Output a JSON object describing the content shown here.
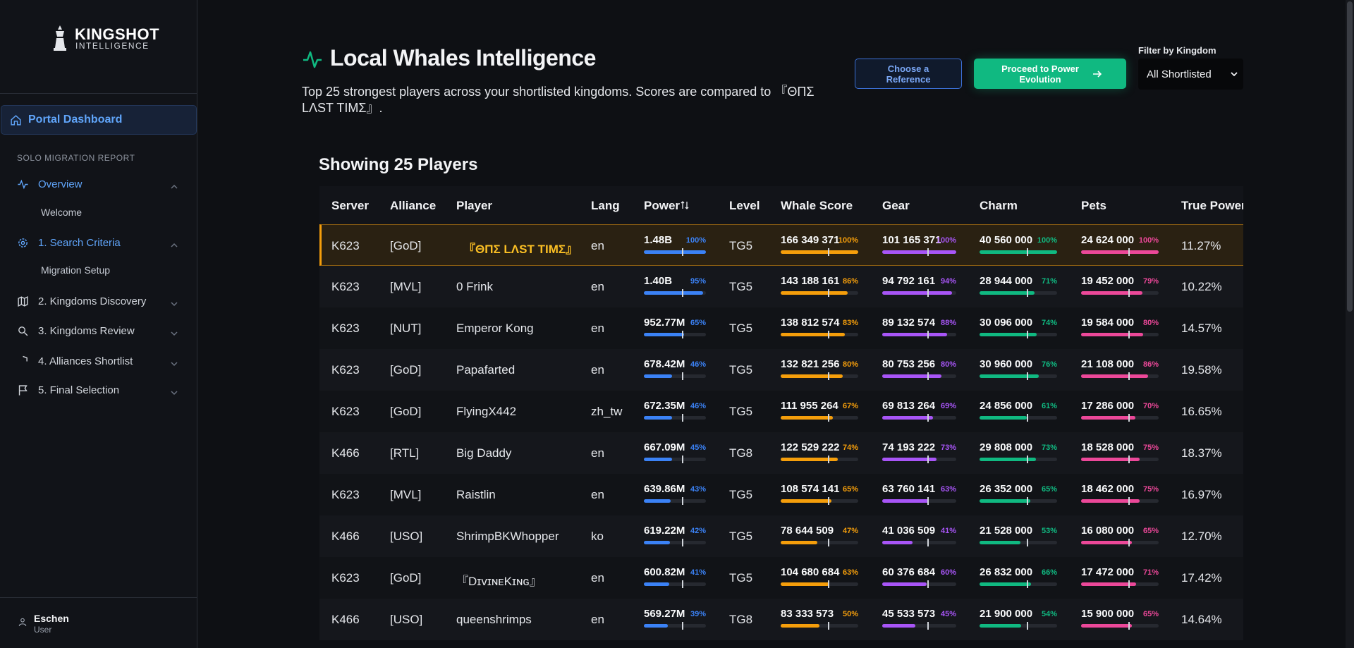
{
  "sidebar": {
    "logo": {
      "title": "KINGSHOT",
      "subtitle": "INTELLIGENCE"
    },
    "portal": "Portal Dashboard",
    "section": "SOLO MIGRATION REPORT",
    "nav": [
      {
        "label": "Overview",
        "sub": "Welcome"
      },
      {
        "label": "1. Search Criteria",
        "sub": "Migration Setup"
      },
      {
        "label": "2. Kingdoms Discovery"
      },
      {
        "label": "3. Kingdoms Review"
      },
      {
        "label": "4. Alliances Shortlist"
      },
      {
        "label": "5. Final Selection"
      }
    ],
    "user": {
      "name": "Eschen",
      "role": "User"
    }
  },
  "header": {
    "title": "Local Whales Intelligence",
    "description": "Top 25 strongest players across your shortlisted kingdoms. Scores are compared to 『ΘΠΣ LΛST TIMΣ』.",
    "reference_button": "Choose a Reference",
    "proceed_button": "Proceed to Power Evolution",
    "filter_label": "Filter by Kingdom",
    "filter_value": "All Shortlisted"
  },
  "table": {
    "title": "Showing 25 Players",
    "columns": [
      "Server",
      "Alliance",
      "Player",
      "Lang",
      "Power",
      "Level",
      "Whale Score",
      "Gear",
      "Charm",
      "Pets",
      "True Power"
    ],
    "rows": [
      [
        "K623",
        "[GoD]",
        "『ΘΠΣ LΛST TIMΣ』",
        "en",
        [
          "1.48B",
          {
            "value": 100,
            "label": "100%"
          }
        ],
        "TG5",
        [
          "166 349 371",
          {
            "value": 100,
            "label": "100%"
          }
        ],
        [
          "101 165 371",
          {
            "value": 100,
            "label": "100%"
          }
        ],
        [
          "40 560 000",
          {
            "value": 100,
            "label": "100%"
          }
        ],
        [
          "24 624 000",
          {
            "value": 100,
            "label": "100%"
          }
        ],
        "11.27%"
      ],
      [
        "K623",
        "[MVL]",
        "0 Frink",
        "en",
        [
          "1.40B",
          {
            "value": 95,
            "label": "95%"
          }
        ],
        "TG5",
        [
          "143 188 161",
          {
            "value": 86,
            "label": "86%"
          }
        ],
        [
          "94 792 161",
          {
            "value": 94,
            "label": "94%"
          }
        ],
        [
          "28 944 000",
          {
            "value": 71,
            "label": "71%"
          }
        ],
        [
          "19 452 000",
          {
            "value": 79,
            "label": "79%"
          }
        ],
        "10.22%"
      ],
      [
        "K623",
        "[NUT]",
        "Emperor Kong",
        "en",
        [
          "952.77M",
          {
            "value": 65,
            "label": "65%"
          }
        ],
        "TG5",
        [
          "138 812 574",
          {
            "value": 83,
            "label": "83%"
          }
        ],
        [
          "89 132 574",
          {
            "value": 88,
            "label": "88%"
          }
        ],
        [
          "30 096 000",
          {
            "value": 74,
            "label": "74%"
          }
        ],
        [
          "19 584 000",
          {
            "value": 80,
            "label": "80%"
          }
        ],
        "14.57%"
      ],
      [
        "K623",
        "[GoD]",
        "Papafarted",
        "en",
        [
          "678.42M",
          {
            "value": 46,
            "label": "46%"
          }
        ],
        "TG5",
        [
          "132 821 256",
          {
            "value": 80,
            "label": "80%"
          }
        ],
        [
          "80 753 256",
          {
            "value": 80,
            "label": "80%"
          }
        ],
        [
          "30 960 000",
          {
            "value": 76,
            "label": "76%"
          }
        ],
        [
          "21 108 000",
          {
            "value": 86,
            "label": "86%"
          }
        ],
        "19.58%"
      ],
      [
        "K623",
        "[GoD]",
        "FlyingX442",
        "zh_tw",
        [
          "672.35M",
          {
            "value": 46,
            "label": "46%"
          }
        ],
        "TG5",
        [
          "111 955 264",
          {
            "value": 67,
            "label": "67%"
          }
        ],
        [
          "69 813 264",
          {
            "value": 69,
            "label": "69%"
          }
        ],
        [
          "24 856 000",
          {
            "value": 61,
            "label": "61%"
          }
        ],
        [
          "17 286 000",
          {
            "value": 70,
            "label": "70%"
          }
        ],
        "16.65%"
      ],
      [
        "K466",
        "[RTL]",
        "Big Daddy",
        "en",
        [
          "667.09M",
          {
            "value": 45,
            "label": "45%"
          }
        ],
        "TG8",
        [
          "122 529 222",
          {
            "value": 74,
            "label": "74%"
          }
        ],
        [
          "74 193 222",
          {
            "value": 73,
            "label": "73%"
          }
        ],
        [
          "29 808 000",
          {
            "value": 73,
            "label": "73%"
          }
        ],
        [
          "18 528 000",
          {
            "value": 75,
            "label": "75%"
          }
        ],
        "18.37%"
      ],
      [
        "K623",
        "[MVL]",
        "Raistlin",
        "en",
        [
          "639.86M",
          {
            "value": 43,
            "label": "43%"
          }
        ],
        "TG5",
        [
          "108 574 141",
          {
            "value": 65,
            "label": "65%"
          }
        ],
        [
          "63 760 141",
          {
            "value": 63,
            "label": "63%"
          }
        ],
        [
          "26 352 000",
          {
            "value": 65,
            "label": "65%"
          }
        ],
        [
          "18 462 000",
          {
            "value": 75,
            "label": "75%"
          }
        ],
        "16.97%"
      ],
      [
        "K466",
        "[USO]",
        "ShrimpBKWhopper",
        "ko",
        [
          "619.22M",
          {
            "value": 42,
            "label": "42%"
          }
        ],
        "TG5",
        [
          "78 644 509",
          {
            "value": 47,
            "label": "47%"
          }
        ],
        [
          "41 036 509",
          {
            "value": 41,
            "label": "41%"
          }
        ],
        [
          "21 528 000",
          {
            "value": 53,
            "label": "53%"
          }
        ],
        [
          "16 080 000",
          {
            "value": 65,
            "label": "65%"
          }
        ],
        "12.70%"
      ],
      [
        "K623",
        "[GoD]",
        "『DɪᴠɪɴᴇKɪɴɢ』",
        "en",
        [
          "600.82M",
          {
            "value": 41,
            "label": "41%"
          }
        ],
        "TG5",
        [
          "104 680 684",
          {
            "value": 63,
            "label": "63%"
          }
        ],
        [
          "60 376 684",
          {
            "value": 60,
            "label": "60%"
          }
        ],
        [
          "26 832 000",
          {
            "value": 66,
            "label": "66%"
          }
        ],
        [
          "17 472 000",
          {
            "value": 71,
            "label": "71%"
          }
        ],
        "17.42%"
      ],
      [
        "K466",
        "[USO]",
        "queenshrimps",
        "en",
        [
          "569.27M",
          {
            "value": 39,
            "label": "39%"
          }
        ],
        "TG8",
        [
          "83 333 573",
          {
            "value": 50,
            "label": "50%"
          }
        ],
        [
          "45 533 573",
          {
            "value": 45,
            "label": "45%"
          }
        ],
        [
          "21 900 000",
          {
            "value": 54,
            "label": "54%"
          }
        ],
        [
          "15 900 000",
          {
            "value": 65,
            "label": "65%"
          }
        ],
        "14.64%"
      ]
    ]
  }
}
